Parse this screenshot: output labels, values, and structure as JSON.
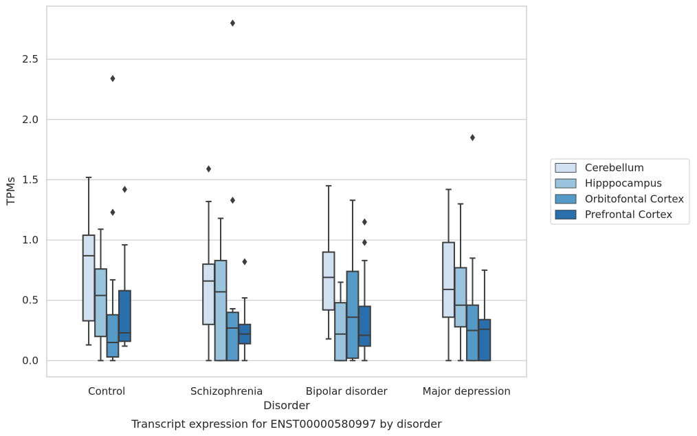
{
  "chart_data": {
    "type": "box",
    "caption": "Transcript expression for ENST00000580997 by disorder",
    "xlabel": "Disorder",
    "ylabel": "TPMs",
    "ylim": [
      -0.135,
      2.94
    ],
    "yticks": [
      "0.0",
      "0.5",
      "1.0",
      "1.5",
      "2.0",
      "2.5"
    ],
    "grid": "horizontal",
    "legend_position": "right",
    "categories": [
      "Control",
      "Schizophrenia",
      "Bipolar disorder",
      "Major depression"
    ],
    "series": [
      {
        "name": "Cerebellum",
        "color": "#d1e1f1",
        "boxes": [
          {
            "whislo": 0.13,
            "q1": 0.33,
            "med": 0.87,
            "q3": 1.04,
            "whishi": 1.52,
            "fliers": []
          },
          {
            "whislo": 0.0,
            "q1": 0.3,
            "med": 0.66,
            "q3": 0.8,
            "whishi": 1.32,
            "fliers": [
              1.59
            ]
          },
          {
            "whislo": 0.18,
            "q1": 0.42,
            "med": 0.69,
            "q3": 0.9,
            "whishi": 1.45,
            "fliers": []
          },
          {
            "whislo": 0.0,
            "q1": 0.36,
            "med": 0.59,
            "q3": 0.98,
            "whishi": 1.42,
            "fliers": []
          }
        ]
      },
      {
        "name": "Hipppocampus",
        "color": "#9ac4de",
        "boxes": [
          {
            "whislo": 0.0,
            "q1": 0.2,
            "med": 0.54,
            "q3": 0.76,
            "whishi": 1.09,
            "fliers": []
          },
          {
            "whislo": 0.0,
            "q1": 0.0,
            "med": 0.57,
            "q3": 0.83,
            "whishi": 1.18,
            "fliers": []
          },
          {
            "whislo": 0.0,
            "q1": 0.0,
            "med": 0.22,
            "q3": 0.48,
            "whishi": 0.65,
            "fliers": []
          },
          {
            "whislo": 0.0,
            "q1": 0.28,
            "med": 0.46,
            "q3": 0.77,
            "whishi": 1.3,
            "fliers": []
          }
        ]
      },
      {
        "name": "Orbitofontal Cortex",
        "color": "#5599c7",
        "boxes": [
          {
            "whislo": 0.0,
            "q1": 0.03,
            "med": 0.15,
            "q3": 0.38,
            "whishi": 0.67,
            "fliers": [
              1.23,
              2.34
            ]
          },
          {
            "whislo": 0.0,
            "q1": 0.0,
            "med": 0.27,
            "q3": 0.4,
            "whishi": 0.43,
            "fliers": [
              1.33,
              2.8
            ]
          },
          {
            "whislo": 0.0,
            "q1": 0.02,
            "med": 0.36,
            "q3": 0.74,
            "whishi": 1.33,
            "fliers": []
          },
          {
            "whislo": 0.0,
            "q1": 0.0,
            "med": 0.25,
            "q3": 0.46,
            "whishi": 0.85,
            "fliers": [
              1.85
            ]
          }
        ]
      },
      {
        "name": "Prefrontal Cortex",
        "color": "#2a6fac",
        "boxes": [
          {
            "whislo": 0.12,
            "q1": 0.16,
            "med": 0.23,
            "q3": 0.58,
            "whishi": 0.96,
            "fliers": [
              1.42
            ]
          },
          {
            "whislo": 0.0,
            "q1": 0.14,
            "med": 0.22,
            "q3": 0.3,
            "whishi": 0.52,
            "fliers": [
              0.82
            ]
          },
          {
            "whislo": 0.0,
            "q1": 0.12,
            "med": 0.21,
            "q3": 0.45,
            "whishi": 0.83,
            "fliers": [
              0.98,
              1.15
            ]
          },
          {
            "whislo": 0.0,
            "q1": 0.0,
            "med": 0.26,
            "q3": 0.34,
            "whishi": 0.75,
            "fliers": []
          }
        ]
      }
    ]
  }
}
